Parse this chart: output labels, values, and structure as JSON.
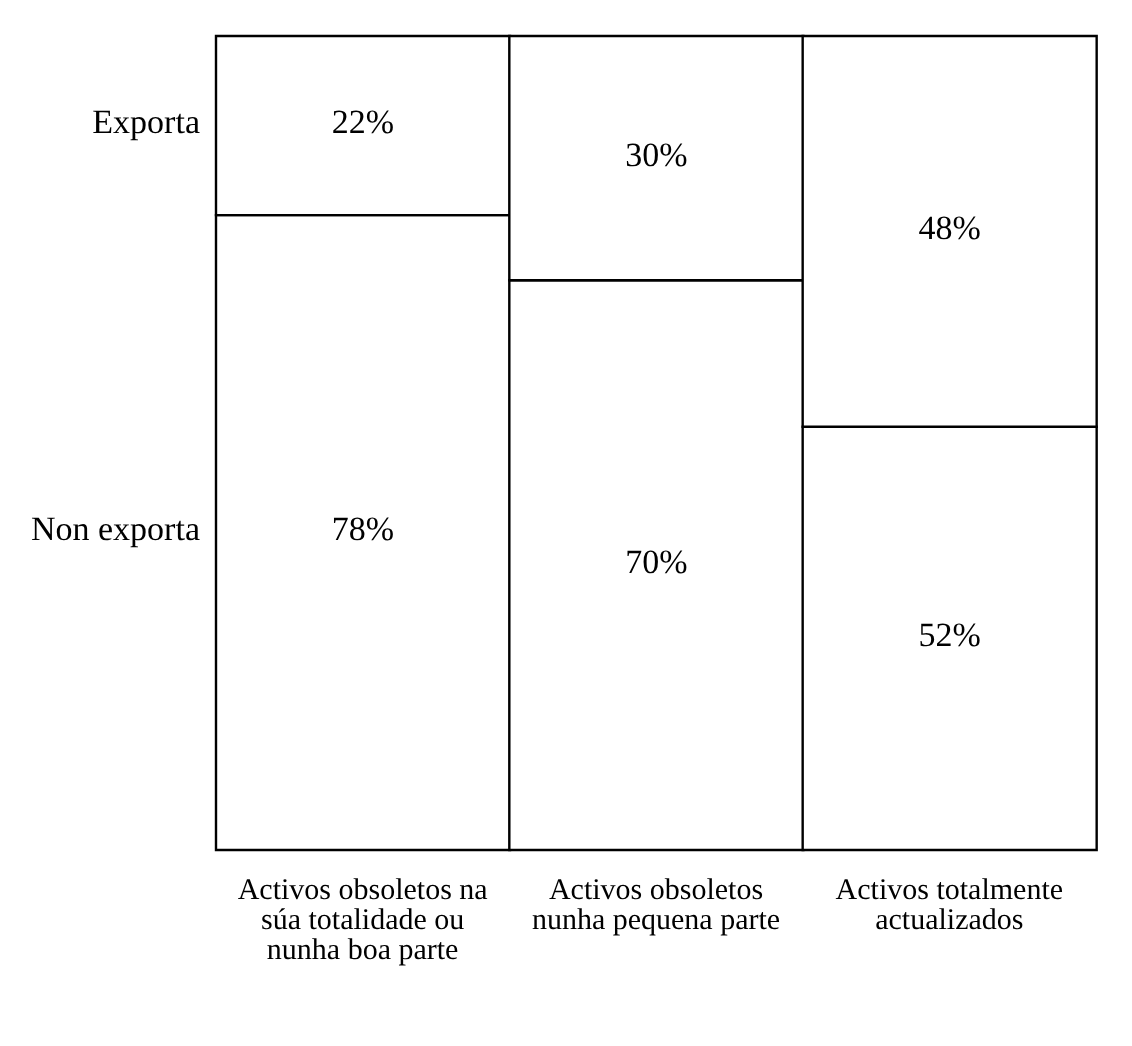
{
  "chart_data": {
    "type": "bar",
    "stacked": true,
    "categories": [
      "Activos obsoletos na súa totalidade ou nunha boa parte",
      "Activos obsoletos nunha pequena parte",
      "Activos totalmente actualizados"
    ],
    "series": [
      {
        "name": "Non exporta",
        "color": "#ffffff",
        "values": [
          78,
          70,
          52
        ],
        "value_labels": [
          "78%",
          "70%",
          "52%"
        ]
      },
      {
        "name": "Exporta",
        "color": "#ffffff",
        "values": [
          22,
          30,
          48
        ],
        "value_labels": [
          "22%",
          "30%",
          "48%"
        ]
      }
    ],
    "legend": "left"
  }
}
